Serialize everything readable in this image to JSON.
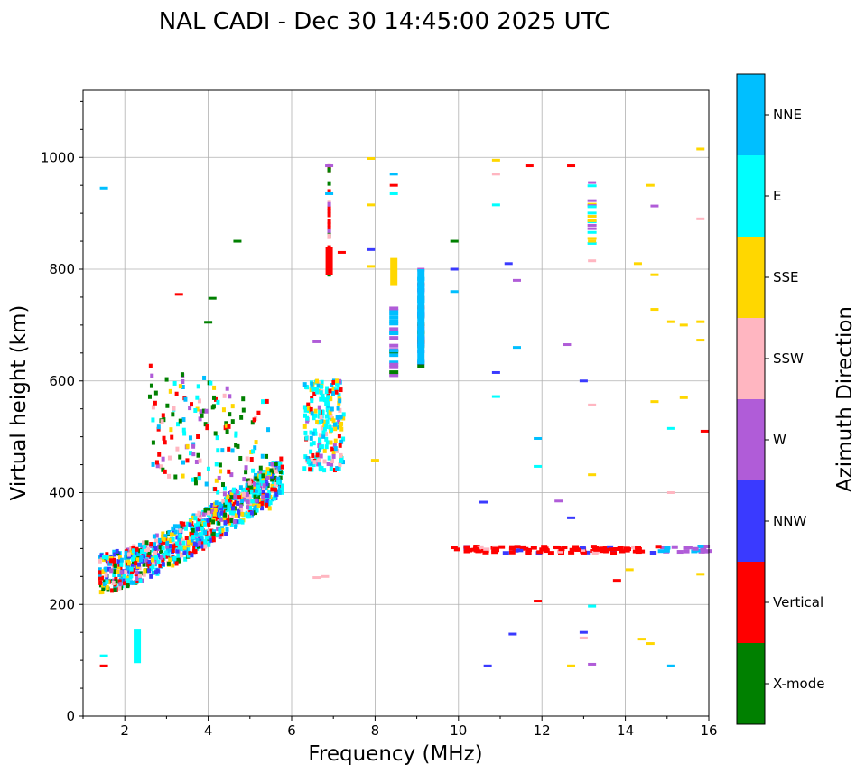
{
  "chart_data": {
    "type": "scatter",
    "title": "NAL CADI - Dec 30 14:45:00 2025 UTC",
    "xlabel": "Frequency (MHz)",
    "ylabel": "Virtual height (km)",
    "xlim": [
      1,
      16
    ],
    "ylim": [
      0,
      1120
    ],
    "xticks": [
      2,
      4,
      6,
      8,
      10,
      12,
      14,
      16
    ],
    "yticks": [
      0,
      200,
      400,
      600,
      800,
      1000
    ],
    "grid": true,
    "colorbar": {
      "label": "Azimuth Direction",
      "categories": [
        {
          "name": "X-mode",
          "color": "#008000"
        },
        {
          "name": "Vertical",
          "color": "#ff0000"
        },
        {
          "name": "NNW",
          "color": "#3a3aff"
        },
        {
          "name": "W",
          "color": "#b05cd8"
        },
        {
          "name": "SSW",
          "color": "#ffb6c1"
        },
        {
          "name": "SSE",
          "color": "#ffd700"
        },
        {
          "name": "E",
          "color": "#00ffff"
        },
        {
          "name": "NNE",
          "color": "#00bfff"
        }
      ]
    },
    "traces": [
      {
        "name": "O-trace low band",
        "f": [
          1.4,
          5.6
        ],
        "h": [
          240,
          440
        ],
        "note": "dense multicolour echoes rising with frequency"
      },
      {
        "name": "F2 cusp",
        "f": [
          6.3,
          7.2
        ],
        "h": [
          440,
          600
        ],
        "dominant": "E"
      },
      {
        "name": "Spread layer",
        "f": [
          2.5,
          5.2
        ],
        "h": [
          440,
          680
        ],
        "note": "scattered echoes"
      },
      {
        "name": "Spread-F 300 km",
        "f": [
          9.9,
          16
        ],
        "h": [
          290,
          305
        ],
        "dominant": "Vertical"
      }
    ],
    "points": [
      {
        "f": 1.5,
        "h": 945,
        "dir": "NNE"
      },
      {
        "f": 2.3,
        "h": 95,
        "h2": 155,
        "dir": "E"
      },
      {
        "f": 1.5,
        "h": 108,
        "dir": "E"
      },
      {
        "f": 1.5,
        "h": 90,
        "dir": "Vertical"
      },
      {
        "f": 6.9,
        "h": 985,
        "dir": "W"
      },
      {
        "f": 6.9,
        "h": 935,
        "dir": "NNE"
      },
      {
        "f": 6.9,
        "h": 790,
        "h2": 840,
        "dir": "Vertical"
      },
      {
        "f": 8.45,
        "h": 770,
        "h2": 820,
        "dir": "SSE"
      },
      {
        "f": 8.45,
        "h": 970,
        "dir": "NNE"
      },
      {
        "f": 8.45,
        "h": 950,
        "dir": "Vertical"
      },
      {
        "f": 8.45,
        "h": 935,
        "dir": "E"
      },
      {
        "f": 9.1,
        "h": 630,
        "h2": 800,
        "dir": "NNE"
      },
      {
        "f": 15.4,
        "h": 700,
        "dir": "SSE"
      },
      {
        "f": 15.9,
        "h": 510,
        "dir": "Vertical"
      },
      {
        "f": 12.7,
        "h": 985,
        "dir": "Vertical"
      },
      {
        "f": 13.2,
        "h": 955,
        "dir": "W"
      },
      {
        "f": 14.6,
        "h": 950,
        "dir": "SSE"
      },
      {
        "f": 15.8,
        "h": 890,
        "dir": "SSW"
      },
      {
        "f": 14.3,
        "h": 810,
        "dir": "SSE"
      },
      {
        "f": 13.2,
        "h": 850,
        "dir": "SSE"
      },
      {
        "f": 12.6,
        "h": 665,
        "dir": "W"
      },
      {
        "f": 13.0,
        "h": 600,
        "dir": "NNW"
      },
      {
        "f": 12.4,
        "h": 385,
        "dir": "W"
      },
      {
        "f": 12.7,
        "h": 355,
        "dir": "NNW"
      },
      {
        "f": 10.6,
        "h": 383,
        "dir": "NNW"
      },
      {
        "f": 11.9,
        "h": 497,
        "dir": "NNE"
      },
      {
        "f": 11.9,
        "h": 447,
        "dir": "E"
      },
      {
        "f": 13.8,
        "h": 243,
        "dir": "Vertical"
      },
      {
        "f": 14.1,
        "h": 262,
        "dir": "SSE"
      },
      {
        "f": 15.8,
        "h": 254,
        "dir": "SSE"
      },
      {
        "f": 11.9,
        "h": 206,
        "dir": "Vertical"
      },
      {
        "f": 13.2,
        "h": 197,
        "dir": "E"
      },
      {
        "f": 13.0,
        "h": 150,
        "dir": "NNW"
      },
      {
        "f": 13.0,
        "h": 140,
        "dir": "SSW"
      },
      {
        "f": 14.4,
        "h": 138,
        "dir": "SSE"
      },
      {
        "f": 14.6,
        "h": 130,
        "dir": "SSE"
      },
      {
        "f": 12.7,
        "h": 90,
        "dir": "SSE"
      },
      {
        "f": 13.2,
        "h": 93,
        "dir": "W"
      },
      {
        "f": 15.1,
        "h": 90,
        "dir": "NNE"
      },
      {
        "f": 10.7,
        "h": 90,
        "dir": "NNW"
      },
      {
        "f": 11.3,
        "h": 147,
        "dir": "NNW"
      },
      {
        "f": 10.9,
        "h": 615,
        "dir": "NNW"
      },
      {
        "f": 10.9,
        "h": 572,
        "dir": "E"
      },
      {
        "f": 11.4,
        "h": 660,
        "dir": "NNE"
      },
      {
        "f": 11.4,
        "h": 780,
        "dir": "W"
      },
      {
        "f": 11.2,
        "h": 810,
        "dir": "NNW"
      },
      {
        "f": 10.9,
        "h": 915,
        "dir": "E"
      },
      {
        "f": 10.9,
        "h": 970,
        "dir": "SSW"
      },
      {
        "f": 10.9,
        "h": 995,
        "dir": "SSE"
      },
      {
        "f": 11.7,
        "h": 985,
        "dir": "Vertical"
      },
      {
        "f": 9.9,
        "h": 850,
        "dir": "X-mode"
      },
      {
        "f": 9.9,
        "h": 800,
        "dir": "NNW"
      },
      {
        "f": 9.9,
        "h": 760,
        "dir": "NNE"
      },
      {
        "f": 13.2,
        "h": 432,
        "dir": "SSE"
      },
      {
        "f": 13.2,
        "h": 557,
        "dir": "SSW"
      },
      {
        "f": 14.7,
        "h": 563,
        "dir": "SSE"
      },
      {
        "f": 15.4,
        "h": 570,
        "dir": "SSE"
      },
      {
        "f": 15.1,
        "h": 515,
        "dir": "E"
      },
      {
        "f": 15.1,
        "h": 400,
        "dir": "SSW"
      },
      {
        "f": 14.7,
        "h": 728,
        "dir": "SSE"
      },
      {
        "f": 14.7,
        "h": 790,
        "dir": "SSE"
      },
      {
        "f": 15.1,
        "h": 706,
        "dir": "SSE"
      },
      {
        "f": 15.8,
        "h": 706,
        "dir": "SSE"
      },
      {
        "f": 15.8,
        "h": 673,
        "dir": "SSE"
      },
      {
        "f": 15.8,
        "h": 1015,
        "dir": "SSE"
      },
      {
        "f": 14.7,
        "h": 913,
        "dir": "W"
      },
      {
        "f": 13.2,
        "h": 815,
        "dir": "SSW"
      },
      {
        "f": 7.9,
        "h": 998,
        "dir": "SSE"
      },
      {
        "f": 7.9,
        "h": 915,
        "dir": "SSE"
      },
      {
        "f": 7.9,
        "h": 835,
        "dir": "NNW"
      },
      {
        "f": 7.9,
        "h": 805,
        "dir": "SSE"
      },
      {
        "f": 8.0,
        "h": 458,
        "dir": "SSE"
      },
      {
        "f": 7.2,
        "h": 830,
        "dir": "Vertical"
      },
      {
        "f": 6.6,
        "h": 670,
        "dir": "W"
      },
      {
        "f": 6.6,
        "h": 248,
        "dir": "SSW"
      },
      {
        "f": 6.8,
        "h": 250,
        "dir": "SSW"
      },
      {
        "f": 3.3,
        "h": 755,
        "dir": "Vertical"
      },
      {
        "f": 4.1,
        "h": 748,
        "dir": "X-mode"
      },
      {
        "f": 4.7,
        "h": 850,
        "dir": "X-mode"
      },
      {
        "f": 4.0,
        "h": 705,
        "dir": "X-mode"
      }
    ]
  }
}
